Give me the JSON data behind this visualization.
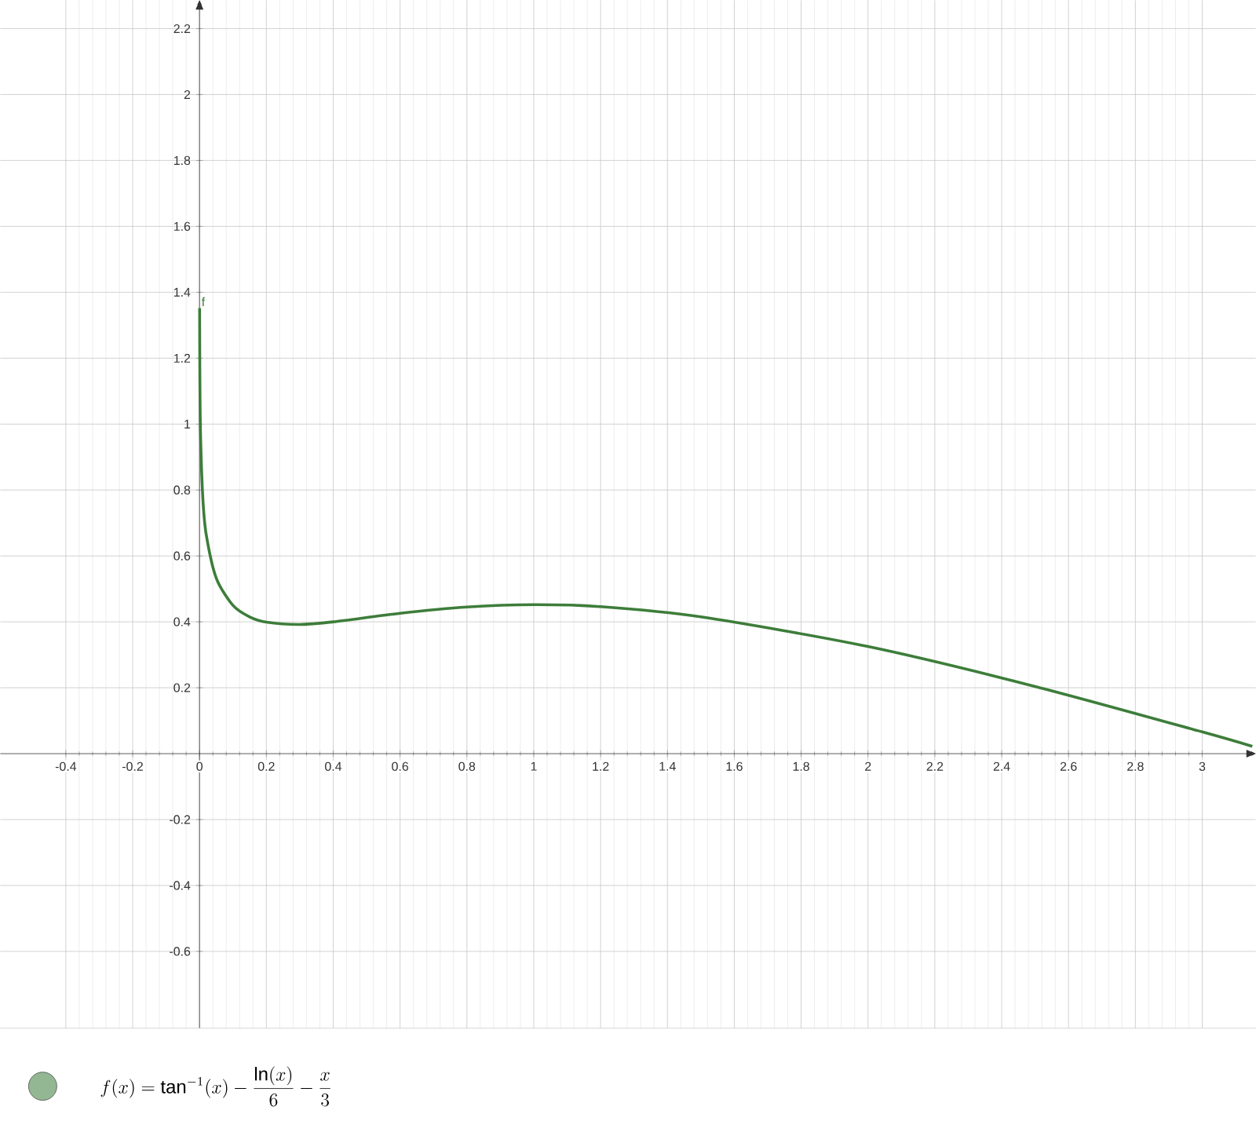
{
  "chart_data": {
    "type": "line",
    "series": [
      {
        "name": "f",
        "color": "#3d7d3a",
        "x": [
          0.0003,
          0.001,
          0.003,
          0.01,
          0.02,
          0.05,
          0.1,
          0.15,
          0.2,
          0.3,
          0.4,
          0.6,
          0.8,
          1.0,
          1.2,
          1.5,
          2.0,
          2.5,
          3.0,
          3.15
        ],
        "values": [
          1.352,
          1.152,
          0.97,
          0.774,
          0.665,
          0.533,
          0.45,
          0.415,
          0.399,
          0.392,
          0.4,
          0.426,
          0.445,
          0.452,
          0.446,
          0.415,
          0.325,
          0.204,
          0.066,
          0.022
        ]
      }
    ],
    "xlim": [
      -0.596,
      3.16
    ],
    "ylim": [
      -0.833,
      2.286
    ],
    "xticks": [
      -0.4,
      -0.2,
      0,
      0.2,
      0.4,
      0.6,
      0.8,
      1,
      1.2,
      1.4,
      1.6,
      1.8,
      2,
      2.2,
      2.4,
      2.6,
      2.8,
      3
    ],
    "yticks": [
      -0.6,
      -0.4,
      -0.2,
      0.2,
      0.4,
      0.6,
      0.8,
      1,
      1.2,
      1.4,
      1.6,
      1.8,
      2,
      2.2
    ],
    "grid": true,
    "annotations": [
      "f(x) = \\tan^{-1}(x) - \\frac{\\ln(x)}{6} - \\frac{x}{3}"
    ]
  }
}
